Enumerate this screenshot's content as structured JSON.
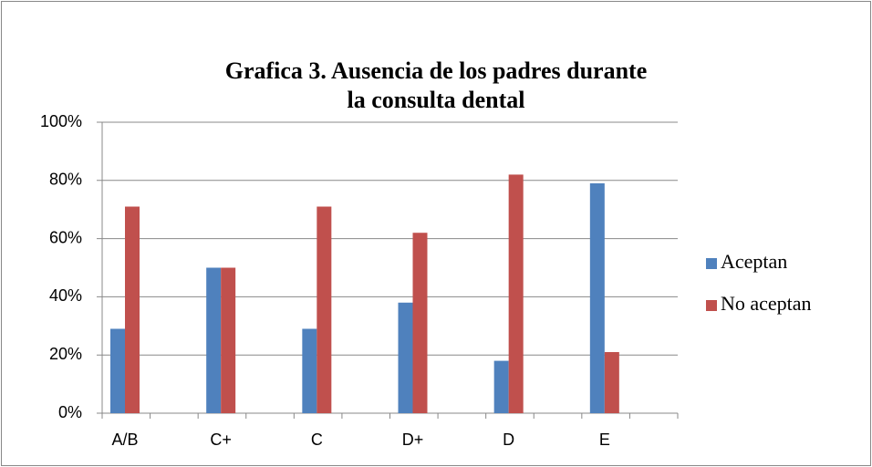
{
  "chart_data": {
    "type": "bar",
    "title": "Grafica 3. Ausencia de los padres durante la consulta dental",
    "categories": [
      "A/B",
      "C+",
      "C",
      "D+",
      "D",
      "E"
    ],
    "series": [
      {
        "name": "Aceptan",
        "color": "#4f81bd",
        "values": [
          29,
          50,
          29,
          38,
          18,
          79
        ]
      },
      {
        "name": "No aceptan",
        "color": "#c0504d",
        "values": [
          71,
          50,
          71,
          62,
          82,
          21
        ]
      }
    ],
    "ylim": [
      0,
      100
    ],
    "yticks": [
      {
        "value": 0,
        "label": "0%"
      },
      {
        "value": 20,
        "label": "20%"
      },
      {
        "value": 40,
        "label": "40%"
      },
      {
        "value": 60,
        "label": "60%"
      },
      {
        "value": 80,
        "label": "80%"
      },
      {
        "value": 100,
        "label": "100%"
      }
    ],
    "grid": true,
    "legend": "right"
  }
}
